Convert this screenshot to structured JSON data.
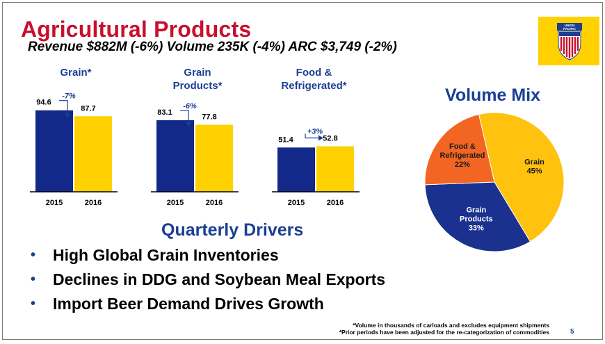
{
  "header": {
    "title": "Agricultural Products",
    "subtitle": "Revenue $882M (-6%) Volume 235K (-4%) ARC $3,749 (-2%)"
  },
  "logo": {
    "top_text": "UNION",
    "bottom_text": "PACIFIC",
    "icon": "union-pacific-shield-icon"
  },
  "chart_data": [
    {
      "type": "bar",
      "title": "Grain*",
      "categories": [
        "2015",
        "2016"
      ],
      "values": [
        94.6,
        87.7
      ],
      "change_label": "-7%",
      "ylim": [
        0,
        100
      ]
    },
    {
      "type": "bar",
      "title": "Grain Products*",
      "categories": [
        "2015",
        "2016"
      ],
      "values": [
        83.1,
        77.8
      ],
      "change_label": "-6%",
      "ylim": [
        0,
        100
      ]
    },
    {
      "type": "bar",
      "title": "Food & Refrigerated*",
      "categories": [
        "2015",
        "2016"
      ],
      "values": [
        51.4,
        52.8
      ],
      "change_label": "+3%",
      "ylim": [
        0,
        100
      ]
    },
    {
      "type": "pie",
      "title": "Volume Mix",
      "slices": [
        {
          "label": "Grain",
          "value": 45,
          "label_text": "45%"
        },
        {
          "label": "Grain Products",
          "value": 33,
          "label_text": "33%"
        },
        {
          "label": "Food & Refrigerated",
          "value": 22,
          "label_text": "22%"
        }
      ]
    }
  ],
  "charts_text": {
    "grain_title_1": "Grain*",
    "grain_title_2": "",
    "grain_products_title_1": "Grain",
    "grain_products_title_2": "Products*",
    "food_title_1": "Food &",
    "food_title_2": "Refrigerated*"
  },
  "drivers": {
    "heading": "Quarterly Drivers",
    "bullet_symbol": "•",
    "items": [
      "High Global Grain Inventories",
      "Declines in DDG and Soybean Meal Exports",
      "Import Beer Demand Drives Growth"
    ]
  },
  "footnotes": [
    "*Volume in thousands of carloads and excludes equipment shipments",
    "*Prior periods have been adjusted for the re-categorization of commodities"
  ],
  "page_number": "5",
  "colors": {
    "title_red": "#c8102e",
    "navy": "#1b3f94",
    "bar_2015": "#12298a",
    "bar_2016": "#ffd100",
    "pie_grain": "#ffc20e",
    "pie_grain_products": "#1a3190",
    "pie_food": "#f26522"
  }
}
